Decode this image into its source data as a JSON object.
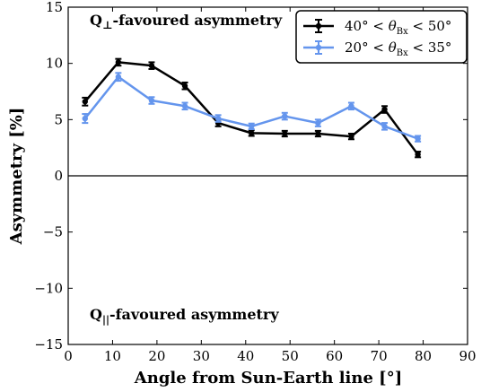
{
  "chart_data": {
    "type": "line",
    "xlabel": "Angle from Sun-Earth line [°]",
    "ylabel": "Asymmetry [%]",
    "xlim": [
      0,
      90
    ],
    "ylim": [
      -15,
      15
    ],
    "xticks": [
      0,
      10,
      20,
      30,
      40,
      50,
      60,
      70,
      80,
      90
    ],
    "yticks": [
      -15,
      -10,
      -5,
      0,
      5,
      10,
      15
    ],
    "xtick_labels": [
      "0",
      "10",
      "20",
      "30",
      "40",
      "50",
      "60",
      "70",
      "80",
      "90"
    ],
    "ytick_labels": [
      "−15",
      "−10",
      "−5",
      "0",
      "5",
      "10",
      "15"
    ],
    "annotations": {
      "top": "Q⊥-favoured asymmetry",
      "bottom": "Q||-favoured asymmetry"
    },
    "legend_position": "top-right",
    "zero_line": true,
    "series": [
      {
        "name": "40° < θBx < 50°",
        "color": "#000000",
        "x": [
          3.8,
          11.3,
          18.8,
          26.3,
          33.8,
          41.3,
          48.8,
          56.3,
          63.8,
          71.3,
          78.8
        ],
        "y": [
          6.6,
          10.1,
          9.8,
          8.0,
          4.7,
          3.8,
          3.75,
          3.75,
          3.5,
          5.9,
          1.9
        ],
        "err": [
          0.35,
          0.3,
          0.3,
          0.3,
          0.3,
          0.25,
          0.25,
          0.25,
          0.25,
          0.3,
          0.25
        ]
      },
      {
        "name": "20° < θBx < 35°",
        "color": "#6495ED",
        "x": [
          3.8,
          11.3,
          18.8,
          26.3,
          33.8,
          41.3,
          48.8,
          56.3,
          63.8,
          71.3,
          78.8
        ],
        "y": [
          5.1,
          8.8,
          6.7,
          6.2,
          5.1,
          4.4,
          5.3,
          4.7,
          6.2,
          4.4,
          3.3
        ],
        "err": [
          0.4,
          0.35,
          0.3,
          0.3,
          0.3,
          0.25,
          0.3,
          0.3,
          0.3,
          0.3,
          0.25
        ]
      }
    ],
    "legend_labels": {
      "black": {
        "prefix": "40° <",
        "theta": "θ",
        "sub": "Bx",
        "suffix": "< 50°"
      },
      "blue": {
        "prefix": "20° <",
        "theta": "θ",
        "sub": "Bx",
        "suffix": "< 35°"
      }
    }
  }
}
